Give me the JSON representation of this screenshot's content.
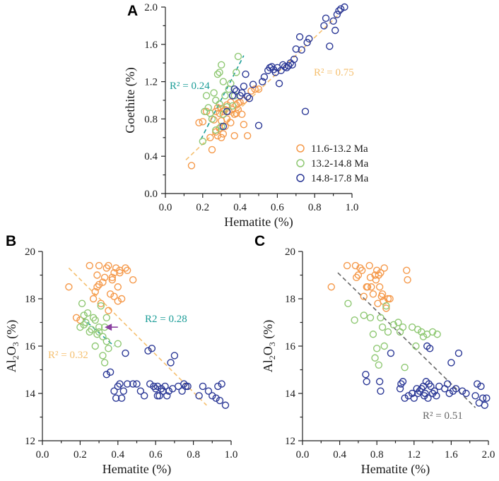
{
  "colors": {
    "orange": "#f5994a",
    "green": "#8fc873",
    "blue": "#2b3896",
    "teal": "#1a9c97",
    "peach": "#f5bf6e",
    "gray": "#666666",
    "purple": "#8a3fa0"
  },
  "chart_data": [
    {
      "panel": "A",
      "type": "scatter",
      "xlabel": "Hematite (%)",
      "ylabel": "Goethite (%)",
      "xlim": [
        0.0,
        1.0
      ],
      "ylim": [
        0.0,
        2.0
      ],
      "xticks": [
        "0.0",
        "0.2",
        "0.4",
        "0.6",
        "0.8",
        "1.0"
      ],
      "yticks": [
        "0.0",
        "0.4",
        "0.8",
        "1.2",
        "1.6",
        "2.0"
      ],
      "legend": [
        "11.6-13.2 Ma",
        "13.2-14.8 Ma",
        "14.8-17.8 Ma"
      ],
      "fits": [
        {
          "label": "R² = 0.24",
          "color": "teal",
          "x0": 0.19,
          "y0": 0.58,
          "x1": 0.42,
          "y1": 1.48
        },
        {
          "label": "R² = 0.75",
          "color": "peach",
          "x0": 0.11,
          "y0": 0.36,
          "x1": 0.95,
          "y1": 1.96
        }
      ],
      "series": [
        {
          "name": "11.6-13.2 Ma",
          "color": "orange",
          "x": [
            0.14,
            0.18,
            0.2,
            0.22,
            0.24,
            0.25,
            0.26,
            0.27,
            0.27,
            0.28,
            0.28,
            0.29,
            0.29,
            0.3,
            0.3,
            0.3,
            0.31,
            0.31,
            0.32,
            0.32,
            0.33,
            0.33,
            0.34,
            0.35,
            0.35,
            0.36,
            0.37,
            0.37,
            0.38,
            0.38,
            0.39,
            0.39,
            0.4,
            0.41,
            0.42,
            0.42,
            0.44,
            0.46,
            0.48,
            0.5
          ],
          "y": [
            0.3,
            0.76,
            0.77,
            0.88,
            0.6,
            0.47,
            0.79,
            0.66,
            0.88,
            0.62,
            0.92,
            0.7,
            0.86,
            0.6,
            0.78,
            0.91,
            0.64,
            0.88,
            0.72,
            0.9,
            0.8,
            0.95,
            0.88,
            0.76,
            0.98,
            0.9,
            0.62,
            0.85,
            0.95,
            0.86,
            0.9,
            0.97,
            0.98,
            0.85,
            1.0,
            0.74,
            0.62,
            1.1,
            1.12,
            1.12
          ]
        },
        {
          "name": "13.2-14.8 Ma",
          "color": "green",
          "x": [
            0.2,
            0.21,
            0.22,
            0.23,
            0.24,
            0.25,
            0.26,
            0.27,
            0.27,
            0.28,
            0.29,
            0.29,
            0.3,
            0.3,
            0.31,
            0.31,
            0.32,
            0.33,
            0.34,
            0.35,
            0.36,
            0.37,
            0.38,
            0.39
          ],
          "y": [
            0.56,
            0.88,
            1.05,
            0.92,
            0.86,
            0.8,
            1.08,
            0.68,
            1.0,
            1.28,
            1.3,
            0.96,
            1.38,
            0.72,
            0.85,
            1.2,
            1.05,
            0.93,
            1.12,
            1.18,
            0.94,
            1.05,
            1.3,
            1.47
          ]
        },
        {
          "name": "14.8-17.8 Ma",
          "color": "blue",
          "x": [
            0.31,
            0.33,
            0.36,
            0.37,
            0.38,
            0.4,
            0.41,
            0.42,
            0.43,
            0.44,
            0.45,
            0.47,
            0.5,
            0.52,
            0.53,
            0.55,
            0.56,
            0.57,
            0.58,
            0.59,
            0.6,
            0.61,
            0.62,
            0.63,
            0.64,
            0.65,
            0.66,
            0.67,
            0.68,
            0.69,
            0.7,
            0.72,
            0.73,
            0.75,
            0.76,
            0.77,
            0.85,
            0.86,
            0.88,
            0.9,
            0.91,
            0.92,
            0.93,
            0.94,
            0.96
          ],
          "y": [
            0.72,
            0.88,
            1.05,
            1.12,
            1.1,
            1.05,
            1.08,
            1.15,
            1.28,
            1.04,
            1.02,
            1.17,
            0.73,
            1.2,
            1.25,
            1.32,
            1.35,
            1.36,
            1.33,
            1.3,
            1.35,
            1.18,
            1.32,
            1.38,
            1.36,
            1.35,
            1.37,
            1.4,
            1.38,
            1.44,
            1.55,
            1.68,
            1.54,
            0.88,
            1.62,
            1.66,
            1.8,
            1.88,
            1.58,
            1.85,
            1.75,
            1.92,
            1.96,
            1.98,
            2.0
          ]
        }
      ]
    },
    {
      "panel": "B",
      "type": "scatter",
      "xlabel": "Hematite (%)",
      "ylabel": "Al2O3 (%)",
      "xlim": [
        0.0,
        1.0
      ],
      "ylim": [
        12,
        20
      ],
      "xticks": [
        "0.0",
        "0.2",
        "0.4",
        "0.6",
        "0.8",
        "1.0"
      ],
      "yticks": [
        "12",
        "14",
        "16",
        "18",
        "20"
      ],
      "fits": [
        {
          "label": "R² = 0.32",
          "color": "peach",
          "x0": 0.14,
          "y0": 19.3,
          "x1": 0.87,
          "y1": 13.5
        },
        {
          "label": "R2 = 0.28",
          "color": "teal",
          "x0": 0.21,
          "y0": 17.2,
          "x1": 0.38,
          "y1": 16.0
        }
      ],
      "arrow": {
        "color": "purple",
        "from": [
          0.4,
          16.8
        ],
        "to": [
          0.33,
          16.8
        ]
      },
      "series": [
        {
          "name": "11.6-13.2 Ma",
          "color": "orange",
          "x": [
            0.14,
            0.18,
            0.2,
            0.25,
            0.27,
            0.28,
            0.29,
            0.29,
            0.3,
            0.3,
            0.31,
            0.32,
            0.33,
            0.34,
            0.35,
            0.35,
            0.36,
            0.37,
            0.37,
            0.38,
            0.38,
            0.39,
            0.4,
            0.4,
            0.41,
            0.41,
            0.42,
            0.44,
            0.45,
            0.48
          ],
          "y": [
            18.5,
            17.2,
            17.1,
            19.4,
            18.0,
            18.3,
            18.5,
            19.0,
            18.6,
            19.4,
            17.8,
            18.7,
            18.9,
            19.3,
            17.5,
            19.4,
            18.2,
            18.9,
            18.8,
            19.1,
            18.1,
            19.3,
            17.9,
            18.5,
            19.2,
            19.1,
            18.0,
            19.3,
            19.2,
            18.8
          ]
        },
        {
          "name": "13.2-14.8 Ma",
          "color": "green",
          "x": [
            0.2,
            0.21,
            0.22,
            0.22,
            0.23,
            0.24,
            0.25,
            0.26,
            0.27,
            0.28,
            0.28,
            0.29,
            0.3,
            0.3,
            0.31,
            0.32,
            0.32,
            0.33,
            0.33,
            0.34,
            0.34,
            0.35,
            0.4
          ],
          "y": [
            16.8,
            17.8,
            16.9,
            17.3,
            17.0,
            17.4,
            16.6,
            16.7,
            17.2,
            16.0,
            17.1,
            16.5,
            16.8,
            16.6,
            17.7,
            15.6,
            16.4,
            16.8,
            15.3,
            16.2,
            17.2,
            15.9,
            16.1
          ]
        },
        {
          "name": "14.8-17.8 Ma",
          "color": "blue",
          "x": [
            0.34,
            0.36,
            0.38,
            0.39,
            0.4,
            0.41,
            0.42,
            0.43,
            0.44,
            0.45,
            0.48,
            0.5,
            0.52,
            0.54,
            0.56,
            0.57,
            0.58,
            0.59,
            0.6,
            0.61,
            0.61,
            0.62,
            0.63,
            0.64,
            0.65,
            0.66,
            0.67,
            0.68,
            0.69,
            0.7,
            0.72,
            0.74,
            0.75,
            0.76,
            0.77,
            0.83,
            0.85,
            0.88,
            0.9,
            0.92,
            0.93,
            0.94,
            0.95,
            0.97
          ],
          "y": [
            14.8,
            14.9,
            14.1,
            13.8,
            14.3,
            14.4,
            13.8,
            14.1,
            15.7,
            14.4,
            14.4,
            14.4,
            14.1,
            13.9,
            15.8,
            14.4,
            15.9,
            14.3,
            14.2,
            13.9,
            14.3,
            13.9,
            14.2,
            14.1,
            14.3,
            13.9,
            14.1,
            15.3,
            14.2,
            15.6,
            14.3,
            14.1,
            14.4,
            14.3,
            14.3,
            13.9,
            14.3,
            14.1,
            13.9,
            13.8,
            14.3,
            13.7,
            14.4,
            13.5
          ]
        }
      ]
    },
    {
      "panel": "C",
      "type": "scatter",
      "xlabel": "Hematite (%)",
      "ylabel": "Al2O3 (%)",
      "xlim": [
        0.0,
        2.0
      ],
      "ylim": [
        12,
        20
      ],
      "xticks": [
        "0.0",
        "0.4",
        "0.8",
        "1.2",
        "1.6",
        "2.0"
      ],
      "yticks": [
        "12",
        "14",
        "16",
        "18",
        "20"
      ],
      "fits": [
        {
          "label": "R² = 0.51",
          "color": "gray",
          "x0": 0.38,
          "y0": 19.1,
          "x1": 1.86,
          "y1": 13.4
        }
      ],
      "series": [
        {
          "name": "11.6-13.2 Ma",
          "color": "orange",
          "x": [
            0.31,
            0.48,
            0.57,
            0.58,
            0.6,
            0.62,
            0.64,
            0.66,
            0.69,
            0.7,
            0.72,
            0.73,
            0.74,
            0.76,
            0.78,
            0.79,
            0.8,
            0.81,
            0.82,
            0.83,
            0.84,
            0.85,
            0.86,
            0.87,
            0.88,
            0.9,
            0.92,
            0.94,
            1.12,
            1.13
          ],
          "y": [
            18.5,
            19.4,
            19.4,
            18.9,
            19.0,
            19.3,
            19.2,
            18.1,
            18.5,
            18.5,
            19.4,
            18.9,
            18.5,
            18.2,
            19.0,
            18.8,
            19.2,
            17.8,
            19.0,
            18.5,
            19.1,
            18.1,
            18.2,
            17.9,
            19.3,
            17.6,
            18.0,
            18.0,
            19.2,
            18.8
          ]
        },
        {
          "name": "13.2-14.8 Ma",
          "color": "green",
          "x": [
            0.49,
            0.56,
            0.66,
            0.73,
            0.76,
            0.78,
            0.8,
            0.82,
            0.84,
            0.86,
            0.88,
            0.9,
            0.92,
            0.98,
            1.03,
            1.05,
            1.08,
            1.1,
            1.18,
            1.22,
            1.24,
            1.28,
            1.3,
            1.34,
            1.4,
            1.45
          ],
          "y": [
            17.8,
            17.1,
            17.3,
            17.2,
            16.5,
            15.5,
            15.9,
            15.2,
            17.2,
            16.8,
            16.0,
            17.7,
            16.6,
            16.9,
            17.0,
            16.6,
            16.8,
            15.1,
            16.8,
            16.0,
            16.7,
            16.6,
            16.4,
            16.5,
            16.6,
            16.5
          ]
        },
        {
          "name": "14.8-17.8 Ma",
          "color": "blue",
          "x": [
            0.68,
            0.69,
            0.83,
            0.84,
            0.95,
            1.05,
            1.06,
            1.08,
            1.1,
            1.14,
            1.18,
            1.2,
            1.23,
            1.24,
            1.26,
            1.28,
            1.3,
            1.31,
            1.32,
            1.33,
            1.34,
            1.35,
            1.36,
            1.37,
            1.38,
            1.4,
            1.42,
            1.44,
            1.47,
            1.53,
            1.56,
            1.58,
            1.6,
            1.62,
            1.65,
            1.68,
            1.72,
            1.76,
            1.86,
            1.88,
            1.9,
            1.92,
            1.94,
            1.96,
            1.98
          ],
          "y": [
            14.8,
            14.5,
            14.5,
            14.1,
            15.7,
            14.2,
            14.4,
            14.5,
            13.8,
            13.9,
            14.0,
            13.8,
            14.2,
            14.0,
            14.1,
            14.2,
            14.3,
            13.9,
            14.0,
            14.5,
            16.0,
            13.8,
            14.4,
            15.9,
            14.3,
            14.0,
            14.1,
            13.9,
            14.3,
            14.2,
            14.4,
            14.0,
            15.3,
            14.1,
            14.2,
            15.7,
            14.1,
            14.0,
            13.9,
            14.4,
            13.6,
            14.3,
            13.8,
            13.5,
            13.8
          ]
        }
      ]
    }
  ]
}
